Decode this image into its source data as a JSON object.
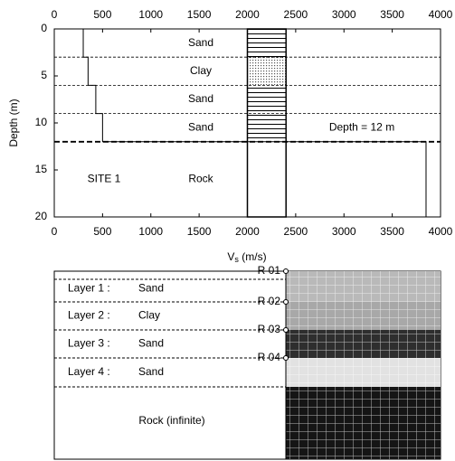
{
  "chart_data": {
    "type": "line",
    "x": [
      300,
      300,
      350,
      350,
      430,
      430,
      500,
      500,
      3850,
      3850
    ],
    "values": [
      0,
      3,
      3,
      6,
      6,
      9,
      9,
      12,
      12,
      20
    ],
    "xlim": [
      0,
      4000
    ],
    "xticks": [
      0,
      500,
      1000,
      1500,
      2000,
      2500,
      3000,
      3500,
      4000
    ],
    "ylim": [
      0,
      20
    ],
    "yticks": [
      0,
      5,
      10,
      15,
      20
    ],
    "ylabel": "Depth (m)",
    "xlabel": {
      "main": "V",
      "sub": "s",
      "rest": " (m/s)"
    },
    "layer_boundaries": [
      3,
      6,
      9,
      12
    ],
    "column": [
      2000,
      2400
    ],
    "layer_labels": [
      "Sand",
      "Clay",
      "Sand",
      "Sand",
      "Rock"
    ],
    "site_label": "SITE 1",
    "depth_label": "Depth = 12 m",
    "color": "#000000"
  },
  "model": {
    "layers": [
      {
        "label": "Layer 1 :",
        "material": "Sand"
      },
      {
        "label": "Layer 2 :",
        "material": "Clay"
      },
      {
        "label": "Layer 3 :",
        "material": "Sand"
      },
      {
        "label": "Layer 4 :",
        "material": "Sand"
      }
    ],
    "rock": "Rock (infinite)",
    "receivers": [
      "R 01",
      "R 02",
      "R 03",
      "R 04"
    ]
  }
}
